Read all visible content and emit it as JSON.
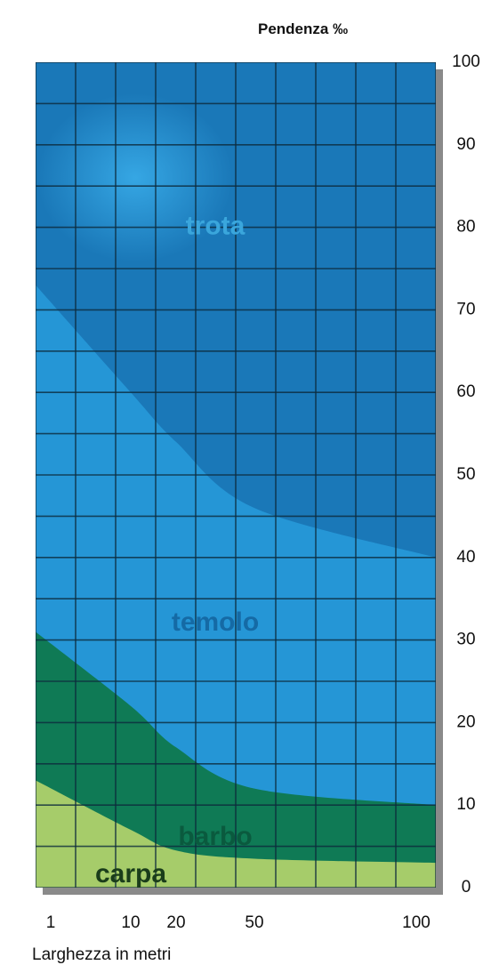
{
  "chart_data": {
    "type": "area",
    "title": "Pendenza ‰",
    "xlabel": "Larghezza in metri",
    "ylabel": "Pendenza ‰",
    "ylim": [
      0,
      100
    ],
    "y_ticks": [
      0,
      10,
      20,
      30,
      40,
      50,
      60,
      70,
      80,
      90,
      100
    ],
    "x_ticks": [
      1,
      10,
      20,
      50,
      100
    ],
    "grid": true,
    "colors": {
      "trota": "#1a78b8",
      "temolo": "#2596d6",
      "barbo": "#0f7a55",
      "carpa": "#a6cc6a",
      "grid": "#0c2a3c"
    },
    "zones": [
      {
        "name": "trota",
        "color": "#1a78b8",
        "label_color": "#3aa6dc",
        "label_pos": [
          35,
          80
        ]
      },
      {
        "name": "temolo",
        "color": "#2596d6",
        "label_color": "#156aa5",
        "label_pos": [
          35,
          32
        ],
        "upper_boundary": {
          "x": [
            1,
            10,
            20,
            50,
            100
          ],
          "y": [
            73,
            60,
            54,
            46,
            40
          ]
        }
      },
      {
        "name": "barbo",
        "color": "#0f7a55",
        "label_color": "#0a5a3e",
        "label_pos": [
          35,
          6
        ],
        "upper_boundary": {
          "x": [
            1,
            10,
            20,
            50,
            100
          ],
          "y": [
            31,
            22,
            17,
            12,
            10
          ]
        }
      },
      {
        "name": "carpa",
        "color": "#a6cc6a",
        "label_color": "#1a3d1a",
        "label_pos": [
          10,
          1.5
        ],
        "upper_boundary": {
          "x": [
            1,
            10,
            20,
            50,
            100
          ],
          "y": [
            13,
            7,
            4.5,
            3.5,
            3
          ]
        }
      }
    ]
  }
}
